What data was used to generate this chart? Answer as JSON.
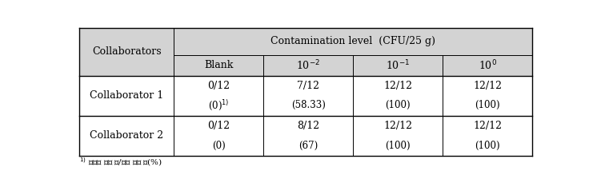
{
  "figsize": [
    7.46,
    2.39
  ],
  "dpi": 100,
  "header_bg": "#d3d3d3",
  "cell_bg": "#ffffff",
  "line_color": "#000000",
  "text_color": "#000000",
  "font_size": 9,
  "small_font_size": 7.5,
  "col_header_main": "Contamination level  (CFU/25 g)",
  "row_header": "Collaborators",
  "rows": [
    {
      "label": "Collaborator 1",
      "values": [
        "0/12",
        "7/12",
        "12/12",
        "12/12"
      ],
      "pcts_display": [
        "(0)$^{1)}$",
        "(58.33)",
        "(100)",
        "(100)"
      ]
    },
    {
      "label": "Collaborator 2",
      "values": [
        "0/12",
        "8/12",
        "12/12",
        "12/12"
      ],
      "pcts_display": [
        "(0)",
        "(67)",
        "(100)",
        "(100)"
      ]
    }
  ],
  "footnote": "$^{1)}$ 검출된 샘플 수/전체 샘플 수(%)"
}
